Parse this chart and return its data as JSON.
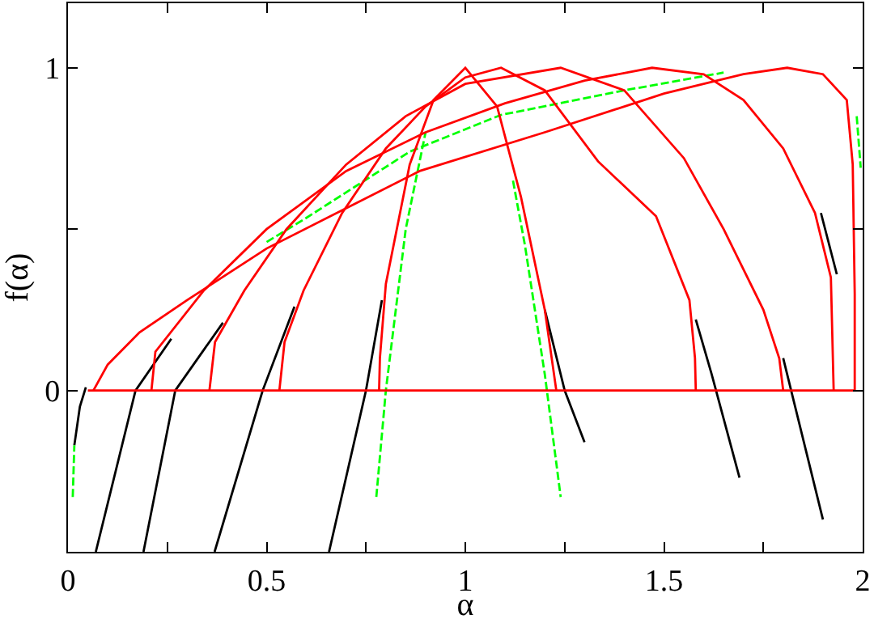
{
  "chart_data": {
    "type": "line",
    "xlabel": "α",
    "ylabel": "f(α)",
    "xlim": [
      0,
      2
    ],
    "ylim": [
      -0.5,
      1.2
    ],
    "xticks": [
      0,
      {
        "value": 0.25,
        "label": null
      },
      0.5,
      {
        "value": 0.75,
        "label": null
      },
      1,
      {
        "value": 1.25,
        "label": null
      },
      1.5,
      {
        "value": 1.75,
        "label": null
      },
      2
    ],
    "yticks": [
      0,
      {
        "value": 0.5,
        "label": null
      },
      1
    ],
    "marker": "none",
    "series": [
      {
        "color": "#000000",
        "line_style": "solid",
        "x": [
          0.657,
          0.75,
          0.79,
          1.0,
          1.2,
          1.25,
          1.3
        ],
        "values": [
          -0.5,
          0,
          0.28,
          null,
          0.25,
          0.0,
          -0.16
        ]
      },
      {
        "color": "#000000",
        "line_style": "solid",
        "x": [
          0.369,
          0.49,
          0.57,
          1.0,
          1.58,
          1.62,
          1.69
        ],
        "values": [
          -0.5,
          0,
          0.26,
          null,
          0.22,
          0.05,
          -0.27
        ]
      },
      {
        "color": "#000000",
        "line_style": "solid",
        "x": [
          0.19,
          0.27,
          0.39,
          1.0,
          1.8,
          1.82,
          1.9
        ],
        "values": [
          -0.5,
          0,
          0.21,
          null,
          0.1,
          0.0,
          -0.4
        ]
      },
      {
        "color": "#000000",
        "line_style": "solid",
        "x": [
          0.07,
          0.17,
          0.26,
          1.0,
          1.895,
          1.935
        ],
        "values": [
          -0.5,
          0,
          0.16,
          null,
          0.55,
          0.36
        ]
      },
      {
        "color": "#000000",
        "line_style": "solid",
        "x": [
          0.016,
          0.03,
          0.045
        ],
        "values": [
          -0.17,
          -0.05,
          0.01
        ]
      },
      {
        "color": "#00ff00",
        "line_style": "dashed",
        "x": [
          0.776,
          0.8,
          0.85,
          0.9,
          1.0,
          1.12,
          1.15,
          1.2,
          1.24
        ],
        "values": [
          -0.33,
          0.0,
          0.5,
          0.8,
          null,
          0.65,
          0.45,
          0.05,
          -0.33
        ]
      },
      {
        "color": "#00ff00",
        "line_style": "dashed",
        "x": [
          0.012,
          0.016,
          0.3,
          0.5,
          0.6,
          0.86,
          1.09,
          1.4,
          1.65,
          1.8,
          1.985,
          1.995
        ],
        "values": [
          -0.33,
          -0.17,
          null,
          0.46,
          0.535,
          0.74,
          0.854,
          0.93,
          0.985,
          null,
          0.85,
          0.69
        ]
      },
      {
        "color": "#ff0000",
        "line_style": "solid",
        "x": [
          0.05,
          1.98
        ],
        "values": [
          0,
          0
        ]
      },
      {
        "color": "#ff0000",
        "line_style": "solid",
        "x": [
          0.783,
          0.785,
          0.8,
          0.86,
          0.92,
          1.0,
          1.08,
          1.14,
          1.2,
          1.229
        ],
        "values": [
          0,
          0.1,
          0.33,
          0.7,
          0.9,
          1.0,
          0.88,
          0.6,
          0.25,
          0
        ]
      },
      {
        "color": "#ff0000",
        "line_style": "solid",
        "x": [
          0.532,
          0.545,
          0.593,
          0.69,
          0.8,
          0.9,
          1.0,
          1.09,
          1.2,
          1.334,
          1.48,
          1.564,
          1.578,
          1.58
        ],
        "values": [
          0,
          0.15,
          0.31,
          0.55,
          0.75,
          0.88,
          0.97,
          1.0,
          0.93,
          0.71,
          0.54,
          0.28,
          0.1,
          0
        ]
      },
      {
        "color": "#ff0000",
        "line_style": "solid",
        "x": [
          0.356,
          0.37,
          0.444,
          0.55,
          0.7,
          0.85,
          1.0,
          1.24,
          1.4,
          1.55,
          1.65,
          1.75,
          1.79,
          1.8
        ],
        "values": [
          0,
          0.15,
          0.31,
          0.5,
          0.7,
          0.85,
          0.95,
          1.0,
          0.93,
          0.72,
          0.5,
          0.25,
          0.1,
          0
        ]
      },
      {
        "color": "#ff0000",
        "line_style": "solid",
        "x": [
          0.21,
          0.22,
          0.342,
          0.5,
          0.7,
          0.9,
          1.1,
          1.3,
          1.47,
          1.6,
          1.7,
          1.8,
          1.88,
          1.92,
          1.927
        ],
        "values": [
          0,
          0.12,
          0.31,
          0.5,
          0.68,
          0.8,
          0.89,
          0.96,
          1.0,
          0.98,
          0.9,
          0.75,
          0.55,
          0.35,
          0
        ]
      },
      {
        "color": "#ff0000",
        "line_style": "solid",
        "x": [
          0.064,
          0.1,
          0.18,
          0.3,
          0.5,
          0.885,
          1.2,
          1.5,
          1.7,
          1.81,
          1.9,
          1.96,
          1.975,
          1.98,
          1.98
        ],
        "values": [
          0,
          0.08,
          0.18,
          0.28,
          0.44,
          0.68,
          0.8,
          0.92,
          0.98,
          1.0,
          0.98,
          0.9,
          0.7,
          0.3,
          0
        ]
      }
    ]
  }
}
